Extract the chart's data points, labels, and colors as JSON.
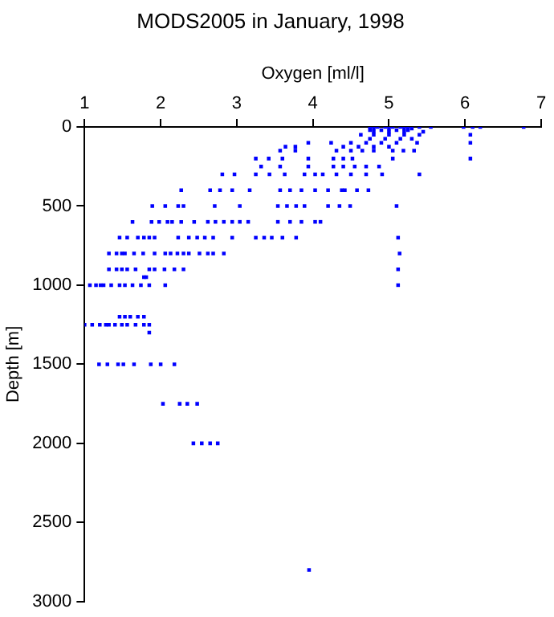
{
  "chart_data": {
    "type": "scatter",
    "title": "MODS2005 in January, 1998",
    "xlabel": "Oxygen [ml/l]",
    "ylabel": "Depth [m]",
    "xlim": [
      1,
      7
    ],
    "xticks": [
      1,
      2,
      3,
      4,
      5,
      6,
      7
    ],
    "ylim": [
      3000,
      0
    ],
    "yticks": [
      0,
      500,
      1000,
      1500,
      2000,
      2500,
      3000
    ],
    "grid": false,
    "legend": false,
    "marker": "square",
    "series": [
      {
        "color": "#0000ff",
        "x": [
          4.75,
          4.85,
          4.95,
          5.05,
          5.15,
          5.25,
          5.4,
          5.55,
          5.98,
          6.1,
          6.2,
          6.77,
          4.8,
          5.0,
          5.2,
          5.3,
          4.75,
          4.9,
          5.1,
          5.25,
          4.8,
          5.0,
          5.2,
          5.45,
          4.63,
          4.8,
          5.0,
          5.2,
          5.4,
          6.07,
          4.75,
          4.95,
          5.15,
          5.3,
          3.94,
          4.24,
          4.5,
          4.7,
          4.9,
          5.1,
          5.37,
          6.07,
          3.64,
          3.77,
          4.4,
          4.6,
          4.8,
          5.0,
          3.57,
          3.77,
          4.31,
          4.5,
          4.65,
          4.8,
          5.05,
          5.19,
          5.33,
          3.25,
          3.42,
          3.6,
          3.94,
          4.27,
          4.4,
          4.52,
          5.05,
          6.07,
          3.32,
          3.57,
          3.94,
          4.27,
          4.4,
          4.55,
          4.7,
          4.87,
          2.81,
          2.97,
          3.25,
          3.43,
          3.63,
          3.89,
          4.03,
          4.13,
          4.31,
          4.5,
          4.7,
          4.91,
          5.4,
          2.27,
          2.65,
          2.78,
          2.94,
          3.17,
          3.57,
          3.7,
          3.85,
          4.03,
          4.2,
          4.38,
          4.42,
          4.58,
          4.73,
          1.89,
          2.06,
          2.23,
          2.3,
          2.71,
          3.04,
          3.54,
          3.66,
          3.78,
          3.89,
          4.2,
          4.35,
          4.49,
          5.1,
          1.63,
          1.88,
          1.98,
          2.09,
          2.15,
          2.27,
          2.44,
          2.62,
          2.72,
          2.83,
          2.94,
          3.04,
          3.15,
          3.54,
          3.7,
          3.85,
          4.03,
          4.1,
          1.46,
          1.56,
          1.7,
          1.78,
          1.85,
          1.92,
          2.23,
          2.37,
          2.48,
          2.58,
          2.69,
          2.94,
          3.25,
          3.36,
          3.46,
          3.6,
          3.78,
          5.12,
          1.32,
          1.42,
          1.49,
          1.53,
          1.65,
          1.77,
          1.92,
          2.06,
          2.13,
          2.22,
          2.3,
          2.37,
          2.51,
          2.62,
          2.69,
          2.83,
          5.14,
          1.32,
          1.42,
          1.49,
          1.56,
          1.67,
          1.85,
          1.92,
          2.05,
          2.18,
          2.3,
          5.12,
          1.78,
          1.81,
          1.07,
          1.15,
          1.21,
          1.25,
          1.35,
          1.46,
          1.53,
          1.63,
          1.74,
          1.85,
          2.06,
          5.12,
          1.46,
          1.53,
          1.6,
          1.7,
          1.78,
          1.0,
          1.1,
          1.2,
          1.28,
          1.32,
          1.4,
          1.49,
          1.56,
          1.67,
          1.78,
          1.85,
          1.85,
          1.19,
          1.3,
          1.44,
          1.51,
          1.65,
          1.87,
          2.0,
          2.18,
          2.03,
          2.25,
          2.35,
          2.48,
          2.43,
          2.54,
          2.65,
          2.75,
          3.95
        ],
        "values": [
          0,
          0,
          0,
          0,
          0,
          0,
          0,
          0,
          0,
          0,
          0,
          0,
          10,
          10,
          10,
          10,
          20,
          20,
          20,
          20,
          30,
          30,
          30,
          30,
          50,
          50,
          50,
          50,
          50,
          50,
          75,
          75,
          75,
          75,
          100,
          100,
          100,
          100,
          100,
          100,
          100,
          100,
          125,
          125,
          125,
          125,
          125,
          125,
          150,
          150,
          150,
          150,
          150,
          150,
          150,
          150,
          150,
          200,
          200,
          200,
          200,
          200,
          200,
          200,
          200,
          200,
          250,
          250,
          250,
          250,
          250,
          250,
          250,
          250,
          300,
          300,
          300,
          300,
          300,
          300,
          300,
          300,
          300,
          300,
          300,
          300,
          300,
          400,
          400,
          400,
          400,
          400,
          400,
          400,
          400,
          400,
          400,
          400,
          400,
          400,
          400,
          500,
          500,
          500,
          500,
          500,
          500,
          500,
          500,
          500,
          500,
          500,
          500,
          500,
          500,
          600,
          600,
          600,
          600,
          600,
          600,
          600,
          600,
          600,
          600,
          600,
          600,
          600,
          600,
          600,
          600,
          600,
          600,
          700,
          700,
          700,
          700,
          700,
          700,
          700,
          700,
          700,
          700,
          700,
          700,
          700,
          700,
          700,
          700,
          700,
          700,
          800,
          800,
          800,
          800,
          800,
          800,
          800,
          800,
          800,
          800,
          800,
          800,
          800,
          800,
          800,
          800,
          800,
          900,
          900,
          900,
          900,
          900,
          900,
          900,
          900,
          900,
          900,
          900,
          950,
          950,
          1000,
          1000,
          1000,
          1000,
          1000,
          1000,
          1000,
          1000,
          1000,
          1000,
          1000,
          1000,
          1200,
          1200,
          1200,
          1200,
          1200,
          1250,
          1250,
          1250,
          1250,
          1250,
          1250,
          1250,
          1250,
          1250,
          1250,
          1250,
          1300,
          1500,
          1500,
          1500,
          1500,
          1500,
          1500,
          1500,
          1500,
          1750,
          1750,
          1750,
          1750,
          2000,
          2000,
          2000,
          2000,
          2800
        ]
      }
    ]
  }
}
